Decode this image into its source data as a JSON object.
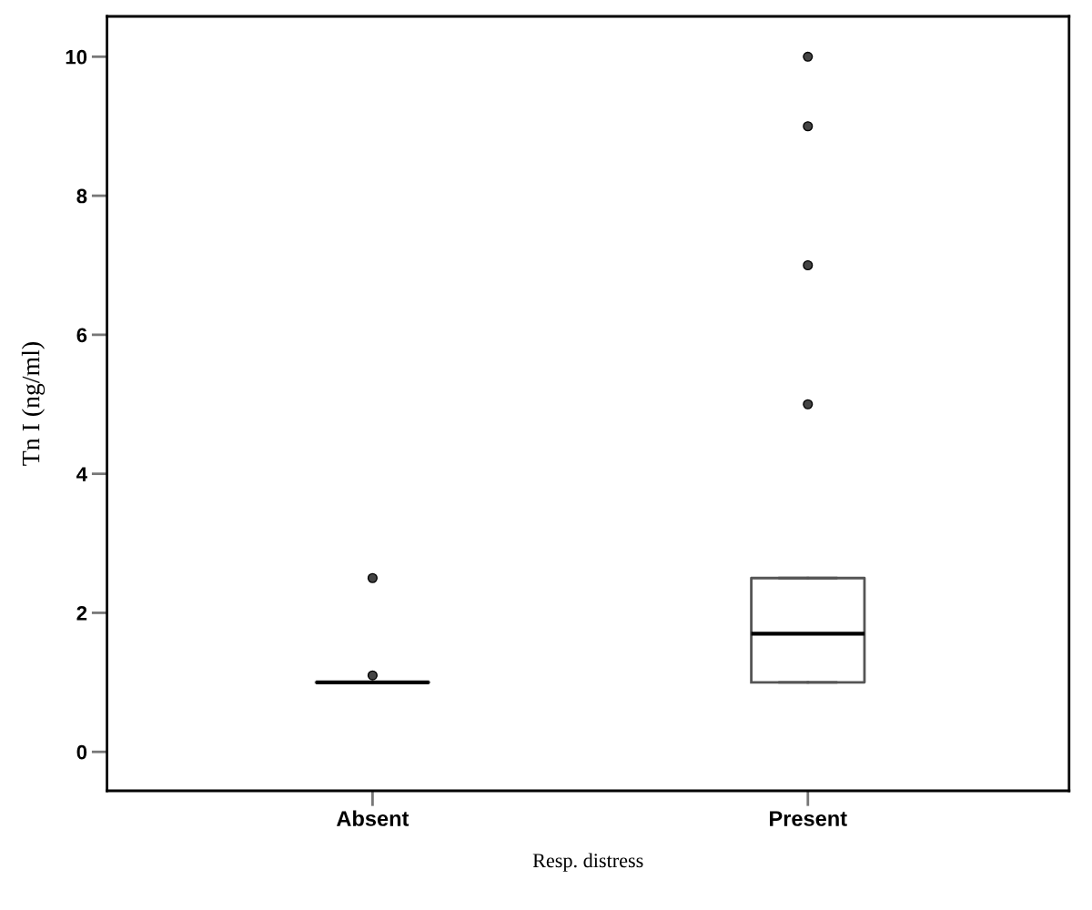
{
  "chart_data": {
    "type": "box",
    "xlabel": "Resp. distress",
    "ylabel": "Tn I (ng/ml)",
    "categories": [
      "Absent",
      "Present"
    ],
    "boxes": [
      {
        "low": 1.0,
        "q1": 1.0,
        "median": 1.0,
        "q3": 1.0,
        "high": 1.0,
        "outliers": [
          1.1,
          2.5
        ]
      },
      {
        "low": 1.0,
        "q1": 1.0,
        "median": 1.7,
        "q3": 2.5,
        "high": 2.5,
        "outliers": [
          5,
          7,
          9,
          10
        ]
      }
    ],
    "ylim": [
      -0.56,
      10.58
    ],
    "yticks": [
      0,
      2,
      4,
      6,
      8,
      10
    ],
    "grid": false
  }
}
